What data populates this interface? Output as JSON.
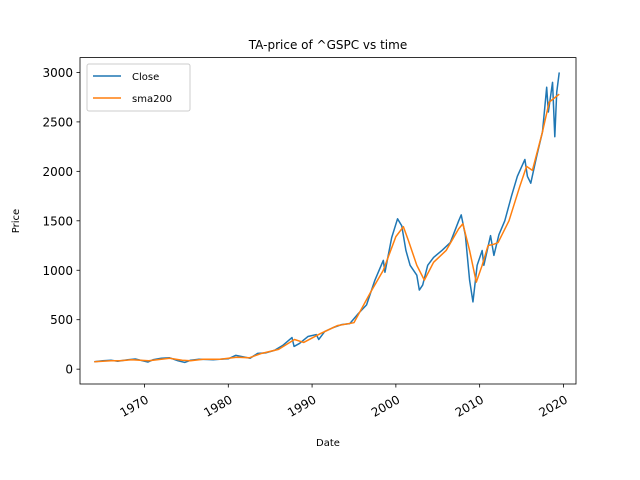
{
  "chart_data": {
    "type": "line",
    "title": "TA-price of ^GSPC vs time",
    "xlabel": "Date",
    "ylabel": "Price",
    "xlim": [
      1962.3,
      2021.5
    ],
    "ylim": [
      -150,
      3150
    ],
    "xticks": [
      1970,
      1980,
      1990,
      2000,
      2010,
      2020
    ],
    "xtick_labels": [
      "1970",
      "1980",
      "1990",
      "2000",
      "2010",
      "2020"
    ],
    "yticks": [
      0,
      500,
      1000,
      1500,
      2000,
      2500,
      3000
    ],
    "ytick_labels": [
      "0",
      "500",
      "1000",
      "1500",
      "2000",
      "2500",
      "3000"
    ],
    "grid": false,
    "legend_position": "upper left",
    "colors": {
      "Close": "#1f77b4",
      "sma200": "#ff7f0e"
    },
    "series": [
      {
        "name": "Close",
        "x": [
          1964.0,
          1965.0,
          1966.0,
          1966.8,
          1968.0,
          1968.9,
          1970.4,
          1971.0,
          1972.0,
          1973.0,
          1974.0,
          1974.8,
          1975.5,
          1976.5,
          1977.5,
          1978.2,
          1979.0,
          1980.0,
          1980.9,
          1982.6,
          1983.5,
          1984.5,
          1985.5,
          1986.5,
          1987.6,
          1987.85,
          1988.5,
          1989.5,
          1990.5,
          1990.8,
          1991.5,
          1992.5,
          1993.5,
          1994.5,
          1995.5,
          1996.5,
          1997.5,
          1998.5,
          1998.7,
          1999.5,
          2000.2,
          2000.7,
          2001.2,
          2001.7,
          2002.5,
          2002.8,
          2003.2,
          2003.8,
          2004.5,
          2005.5,
          2006.5,
          2007.5,
          2007.8,
          2008.3,
          2008.8,
          2009.2,
          2009.7,
          2010.3,
          2010.5,
          2011.3,
          2011.7,
          2012.3,
          2013.0,
          2013.8,
          2014.5,
          2015.4,
          2015.7,
          2016.1,
          2016.8,
          2017.5,
          2018.0,
          2018.2,
          2018.7,
          2018.97,
          2019.2,
          2019.5
        ],
        "y": [
          75,
          85,
          90,
          80,
          95,
          103,
          72,
          95,
          110,
          115,
          85,
          68,
          90,
          100,
          98,
          95,
          100,
          105,
          140,
          110,
          160,
          165,
          190,
          240,
          320,
          230,
          260,
          330,
          350,
          300,
          380,
          420,
          450,
          460,
          560,
          650,
          900,
          1100,
          980,
          1330,
          1520,
          1450,
          1200,
          1050,
          950,
          800,
          850,
          1050,
          1130,
          1200,
          1280,
          1500,
          1560,
          1350,
          900,
          680,
          1050,
          1200,
          1050,
          1350,
          1150,
          1360,
          1500,
          1750,
          1950,
          2120,
          1950,
          1880,
          2150,
          2400,
          2850,
          2600,
          2900,
          2350,
          2800,
          3000
        ]
      },
      {
        "name": "sma200",
        "x": [
          1964.0,
          1966.0,
          1967.0,
          1968.5,
          1970.5,
          1971.5,
          1973.0,
          1974.5,
          1975.5,
          1977.0,
          1979.0,
          1981.0,
          1982.5,
          1984.0,
          1986.0,
          1987.9,
          1989.0,
          1991.0,
          1993.0,
          1995.0,
          1997.0,
          1998.5,
          2000.0,
          2000.9,
          2001.5,
          2002.5,
          2003.4,
          2004.5,
          2006.0,
          2007.5,
          2008.0,
          2008.8,
          2009.6,
          2010.3,
          2011.0,
          2011.6,
          2012.2,
          2013.5,
          2014.8,
          2015.6,
          2016.3,
          2017.5,
          2018.3,
          2018.9,
          2019.5
        ],
        "y": [
          75,
          85,
          85,
          95,
          85,
          95,
          110,
          90,
          85,
          100,
          100,
          120,
          115,
          160,
          200,
          300,
          270,
          360,
          440,
          470,
          780,
          1000,
          1340,
          1440,
          1300,
          1050,
          900,
          1080,
          1200,
          1420,
          1470,
          1200,
          880,
          1050,
          1250,
          1260,
          1280,
          1500,
          1850,
          2050,
          2010,
          2400,
          2700,
          2740,
          2780
        ]
      }
    ]
  }
}
